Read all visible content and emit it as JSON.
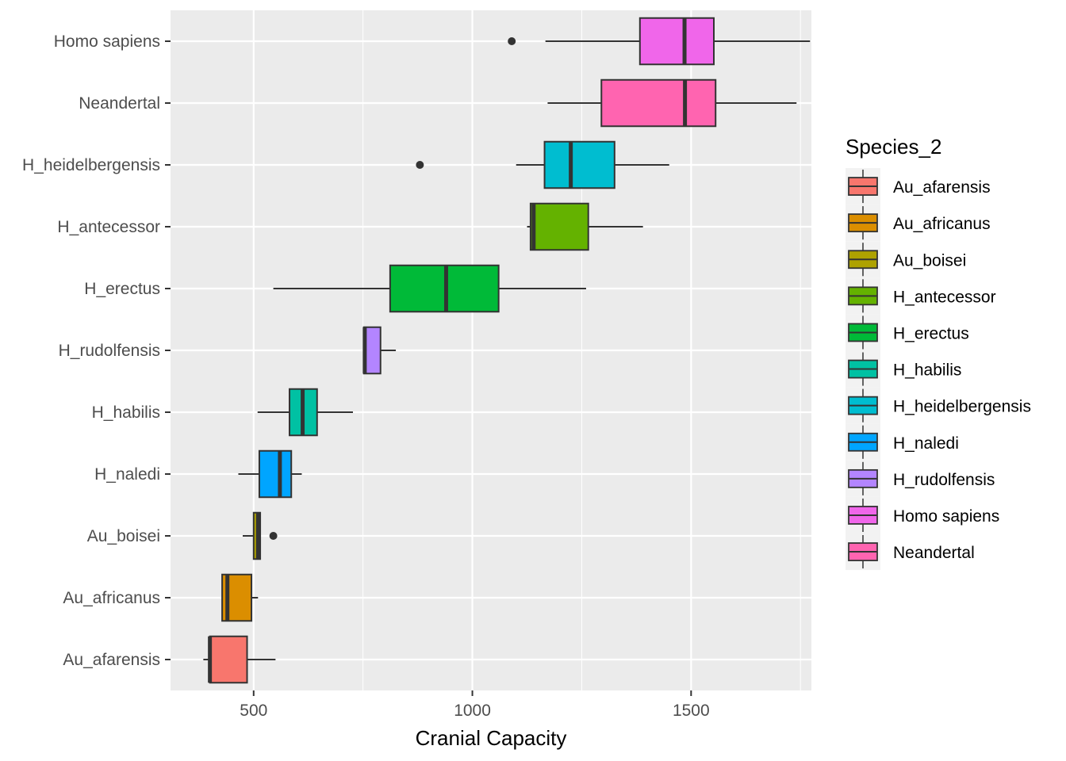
{
  "chart_data": {
    "type": "boxplot",
    "orientation": "horizontal",
    "xlabel": "Cranial Capacity",
    "ylabel": "",
    "xlim": [
      310,
      1775
    ],
    "xticks": [
      500,
      1000,
      1500
    ],
    "xtick_labels": [
      "500",
      "1000",
      "1500"
    ],
    "grid": true,
    "legend_title": "Species_2",
    "legend_position": "right",
    "categories": [
      "Homo sapiens",
      "Neandertal",
      "H_heidelbergensis",
      "H_antecessor",
      "H_erectus",
      "H_rudolfensis",
      "H_habilis",
      "H_naledi",
      "Au_boisei",
      "Au_africanus",
      "Au_afarensis"
    ],
    "boxes": [
      {
        "species": "Homo sapiens",
        "whisker_low": 1167,
        "q1": 1383,
        "median": 1485,
        "q3": 1552,
        "whisker_high": 1772,
        "outliers": [
          1090
        ],
        "color": "#F066EA"
      },
      {
        "species": "Neandertal",
        "whisker_low": 1172,
        "q1": 1295,
        "median": 1486,
        "q3": 1556,
        "whisker_high": 1741,
        "outliers": [],
        "color": "#FF64B0"
      },
      {
        "species": "H_heidelbergensis",
        "whisker_low": 1100,
        "q1": 1165,
        "median": 1225,
        "q3": 1325,
        "whisker_high": 1450,
        "outliers": [
          880
        ],
        "color": "#00BDD0"
      },
      {
        "species": "H_antecessor",
        "whisker_low": 1125,
        "q1": 1133,
        "median": 1140,
        "q3": 1265,
        "whisker_high": 1390,
        "outliers": [],
        "color": "#64B200"
      },
      {
        "species": "H_erectus",
        "whisker_low": 545,
        "q1": 812,
        "median": 940,
        "q3": 1060,
        "whisker_high": 1260,
        "outliers": [],
        "color": "#00BA38"
      },
      {
        "species": "H_rudolfensis",
        "whisker_low": 752,
        "q1": 752,
        "median": 754,
        "q3": 790,
        "whisker_high": 825,
        "outliers": [],
        "color": "#B385FF"
      },
      {
        "species": "H_habilis",
        "whisker_low": 509,
        "q1": 582,
        "median": 612,
        "q3": 645,
        "whisker_high": 727,
        "outliers": [],
        "color": "#00C1A3"
      },
      {
        "species": "H_naledi",
        "whisker_low": 465,
        "q1": 513,
        "median": 560,
        "q3": 586,
        "whisker_high": 610,
        "outliers": [],
        "color": "#00A5FF"
      },
      {
        "species": "Au_boisei",
        "whisker_low": 475,
        "q1": 500,
        "median": 510,
        "q3": 515,
        "whisker_high": 515,
        "outliers": [
          545
        ],
        "color": "#AEA200"
      },
      {
        "species": "Au_africanus",
        "whisker_low": 428,
        "q1": 428,
        "median": 440,
        "q3": 495,
        "whisker_high": 510,
        "outliers": [],
        "color": "#DB8E00"
      },
      {
        "species": "Au_afarensis",
        "whisker_low": 385,
        "q1": 400,
        "median": 400,
        "q3": 485,
        "whisker_high": 550,
        "outliers": [],
        "color": "#F8766D"
      }
    ],
    "legend": [
      {
        "label": "Au_afarensis",
        "color": "#F8766D"
      },
      {
        "label": "Au_africanus",
        "color": "#DB8E00"
      },
      {
        "label": "Au_boisei",
        "color": "#AEA200"
      },
      {
        "label": "H_antecessor",
        "color": "#64B200"
      },
      {
        "label": "H_erectus",
        "color": "#00BA38"
      },
      {
        "label": "H_habilis",
        "color": "#00C1A3"
      },
      {
        "label": "H_heidelbergensis",
        "color": "#00BDD0"
      },
      {
        "label": "H_naledi",
        "color": "#00A5FF"
      },
      {
        "label": "H_rudolfensis",
        "color": "#B385FF"
      },
      {
        "label": "Homo sapiens",
        "color": "#F066EA"
      },
      {
        "label": "Neandertal",
        "color": "#FF64B0"
      }
    ]
  }
}
